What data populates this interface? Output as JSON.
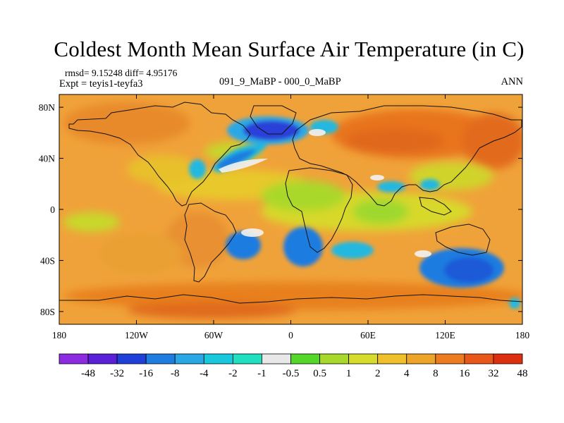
{
  "title": "Coldest Month Mean Surface Air Temperature (in C)",
  "stats": "rmsd= 9.15248 diff= 4.95176",
  "experiment": "Expt = teyis1-teyfa3",
  "comparison": "091_9_MaBP - 000_0_MaBP",
  "season": "ANN",
  "axes": {
    "lat_ticks": [
      {
        "value": 80,
        "label": "80N"
      },
      {
        "value": 40,
        "label": "40N"
      },
      {
        "value": 0,
        "label": "0"
      },
      {
        "value": -40,
        "label": "40S"
      },
      {
        "value": -80,
        "label": "80S"
      }
    ],
    "lon_ticks": [
      {
        "value": -180,
        "label": "180"
      },
      {
        "value": -120,
        "label": "120W"
      },
      {
        "value": -60,
        "label": "60W"
      },
      {
        "value": 0,
        "label": "0"
      },
      {
        "value": 60,
        "label": "60E"
      },
      {
        "value": 120,
        "label": "120E"
      },
      {
        "value": 180,
        "label": "180"
      }
    ]
  },
  "colorbar": {
    "colors": [
      "#8c2be0",
      "#5a1fd6",
      "#1f40d8",
      "#1f7de0",
      "#2aa8e6",
      "#18c8dc",
      "#21e0c0",
      "#e8e8e8",
      "#55d72a",
      "#a8d82a",
      "#d7dc2a",
      "#f0c02a",
      "#eea426",
      "#ec7c1e",
      "#e8561a",
      "#de2e10"
    ],
    "labels": [
      "-48",
      "-32",
      "-16",
      "-8",
      "-4",
      "-2",
      "-1",
      "-0.5",
      "0.5",
      "1",
      "2",
      "4",
      "8",
      "16",
      "32",
      "48"
    ]
  },
  "palette": {
    "background_field": "#f0a23a",
    "deep_orange": "#e8741e",
    "yellow_orange": "#e8c02a",
    "yellow": "#d8d82a",
    "yellow_green": "#aad82c",
    "green": "#8ed834",
    "cyan": "#20b8e0",
    "blue": "#1f7be0",
    "dark_blue": "#2a40d8",
    "white": "#f2f2f2"
  }
}
